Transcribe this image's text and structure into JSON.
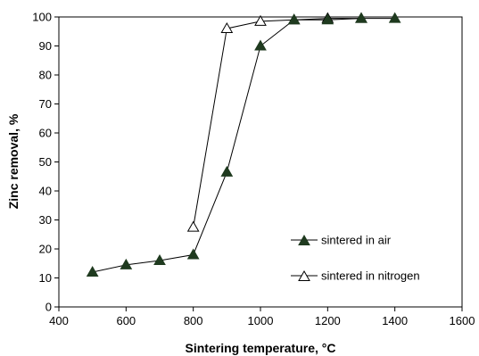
{
  "chart_data": {
    "type": "line",
    "title": "",
    "xlabel": "Sintering temperature, °C",
    "ylabel": "Zinc removal, %",
    "xlim": [
      400,
      1600
    ],
    "ylim": [
      0,
      100
    ],
    "xticks": [
      400,
      600,
      800,
      1000,
      1200,
      1400,
      1600
    ],
    "yticks": [
      0,
      10,
      20,
      30,
      40,
      50,
      60,
      70,
      80,
      90,
      100
    ],
    "grid": false,
    "legend_position": "right",
    "series": [
      {
        "name": "sintered in air",
        "marker": "filled-triangle",
        "color": "#1f3a1f",
        "x": [
          500,
          600,
          700,
          800,
          900,
          1000,
          1100,
          1200,
          1300,
          1400
        ],
        "y": [
          12,
          14.5,
          16,
          18,
          46.5,
          90,
          99,
          99,
          99.5,
          99.5
        ]
      },
      {
        "name": "sintered in nitrogen",
        "marker": "open-triangle",
        "color": "#000000",
        "x": [
          800,
          900,
          1000,
          1100,
          1200,
          1300
        ],
        "y": [
          27.5,
          96,
          98.5,
          99,
          99.5,
          99.5
        ]
      }
    ]
  }
}
